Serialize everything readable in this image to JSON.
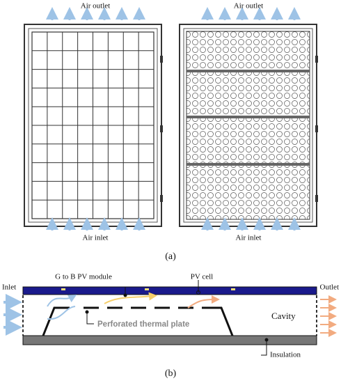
{
  "panel_a": {
    "left_panel": {
      "top_label": "Air outlet",
      "bottom_label": "Air inlet"
    },
    "right_panel": {
      "top_label": "Air outlet",
      "bottom_label": "Air inlet"
    },
    "caption": "(a)"
  },
  "panel_b": {
    "module_label": "G to B PV module",
    "cell_label": "PV cell",
    "inlet_label": "Inlet",
    "outlet_label": "Outlet",
    "cavity_label": "Cavity",
    "plate_label": "Perforated thermal plate",
    "insulation_label": "Insulation",
    "caption": "(b)"
  }
}
